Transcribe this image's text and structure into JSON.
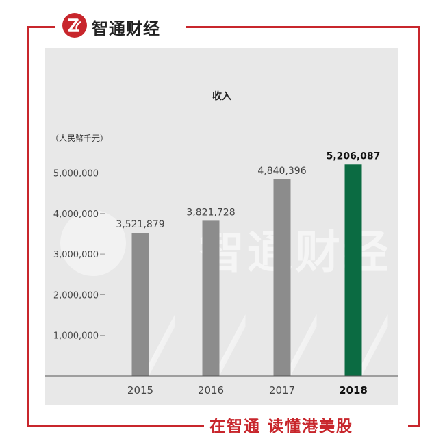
{
  "brand": {
    "name": "智通财经",
    "logo_icon": "zhitong-logo-icon",
    "color": "#c8262c"
  },
  "slogan": "在智通  读懂港美股",
  "chart_data": {
    "type": "bar",
    "title": "收入",
    "unit_label": "（人民幣千元）",
    "categories": [
      "2015",
      "2016",
      "2017",
      "2018"
    ],
    "values": [
      3521879,
      3821728,
      4840396,
      5206087
    ],
    "value_labels": [
      "3,521,879",
      "3,821,728",
      "4,840,396",
      "5,206,087"
    ],
    "highlight_index": 3,
    "colors": {
      "bar": "#8c8c8c",
      "highlight": "#0b6b42",
      "background": "#e8e8e8"
    },
    "yticks": [
      1000000,
      2000000,
      3000000,
      4000000,
      5000000
    ],
    "ytick_labels": [
      "1,000,000",
      "2,000,000",
      "3,000,000",
      "4,000,000",
      "5,000,000"
    ],
    "ylim": [
      0,
      5500000
    ],
    "grid": false
  }
}
